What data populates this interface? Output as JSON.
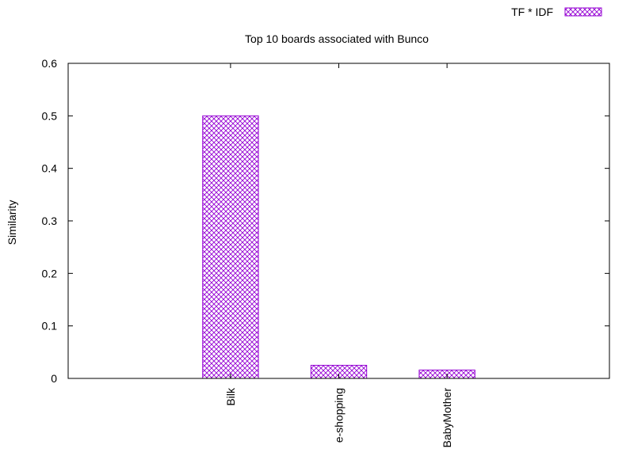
{
  "chart_data": {
    "type": "bar",
    "title": "Top 10 boards associated with Bunco",
    "xlabel": "",
    "ylabel": "Similarity",
    "ylim": [
      0,
      0.6
    ],
    "yticks": [
      "0",
      "0.1",
      "0.2",
      "0.3",
      "0.4",
      "0.5",
      "0.6"
    ],
    "categories": [
      "Bilk",
      "e-shopping",
      "BabyMother"
    ],
    "series": [
      {
        "name": "TF * IDF",
        "values": [
          0.5,
          0.025,
          0.016
        ]
      }
    ],
    "legend_position": "top-right",
    "grid": false,
    "bar_color": "#9400d3"
  }
}
